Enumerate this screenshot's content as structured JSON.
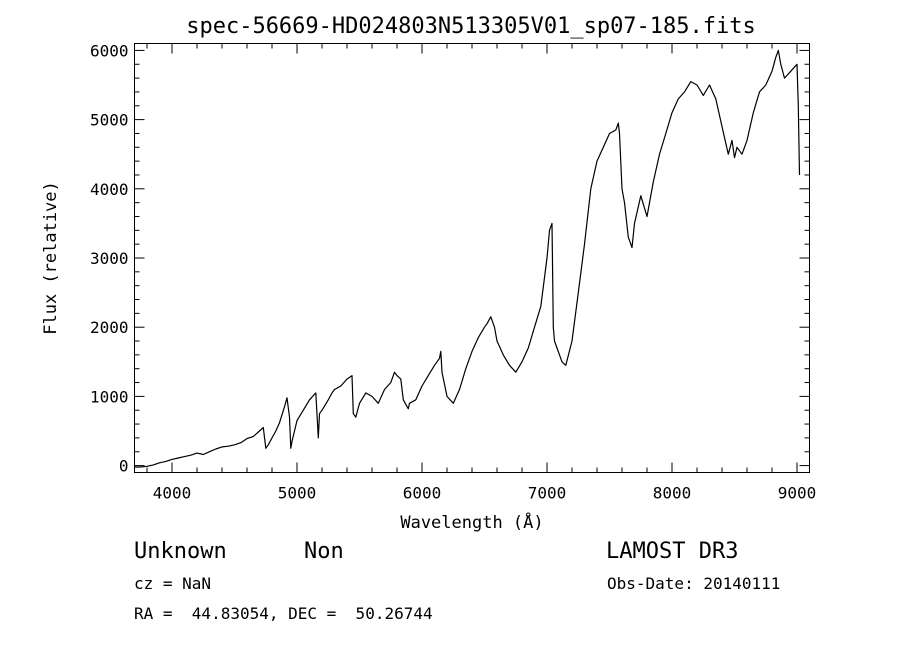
{
  "chart_data": {
    "type": "line",
    "title": "spec-56669-HD024803N513305V01_sp07-185.fits",
    "xlabel": "Wavelength (Å)",
    "ylabel": "Flux (relative)",
    "xlim": [
      3700,
      9100
    ],
    "ylim": [
      -100,
      6100
    ],
    "x_ticks": [
      "4000",
      "5000",
      "6000",
      "7000",
      "8000",
      "9000"
    ],
    "y_ticks": [
      "0",
      "1000",
      "2000",
      "3000",
      "4000",
      "5000",
      "6000"
    ],
    "grid": false,
    "series": [
      {
        "x": [
          3700,
          3750,
          3800,
          3850,
          3900,
          3950,
          4000,
          4050,
          4100,
          4150,
          4200,
          4250,
          4300,
          4350,
          4400,
          4450,
          4500,
          4550,
          4600,
          4650,
          4700,
          4730,
          4750,
          4770,
          4800,
          4830,
          4860,
          4900,
          4920,
          4940,
          4950,
          4960,
          4980,
          5000,
          5050,
          5100,
          5150,
          5170,
          5180,
          5200,
          5250,
          5280,
          5300,
          5350,
          5400,
          5440,
          5450,
          5470,
          5500,
          5550,
          5600,
          5650,
          5700,
          5750,
          5780,
          5800,
          5830,
          5850,
          5890,
          5900,
          5950,
          6000,
          6050,
          6100,
          6140,
          6150,
          6160,
          6200,
          6250,
          6300,
          6350,
          6400,
          6450,
          6500,
          6520,
          6550,
          6580,
          6600,
          6650,
          6700,
          6750,
          6800,
          6850,
          6900,
          6950,
          7000,
          7020,
          7040,
          7050,
          7060,
          7100,
          7120,
          7150,
          7200,
          7250,
          7300,
          7350,
          7400,
          7450,
          7500,
          7550,
          7570,
          7580,
          7600,
          7620,
          7650,
          7680,
          7700,
          7750,
          7800,
          7850,
          7900,
          7950,
          8000,
          8050,
          8100,
          8150,
          8200,
          8250,
          8300,
          8350,
          8400,
          8450,
          8480,
          8500,
          8520,
          8540,
          8560,
          8600,
          8650,
          8700,
          8750,
          8800,
          8830,
          8850,
          8870,
          8900,
          8950,
          9000,
          9010,
          9020
        ],
        "y": [
          -20,
          -20,
          -10,
          10,
          40,
          60,
          90,
          110,
          130,
          150,
          180,
          160,
          200,
          240,
          270,
          280,
          300,
          330,
          390,
          420,
          500,
          550,
          250,
          300,
          400,
          500,
          620,
          850,
          980,
          700,
          250,
          350,
          500,
          650,
          800,
          950,
          1050,
          400,
          750,
          800,
          950,
          1050,
          1100,
          1150,
          1250,
          1300,
          750,
          700,
          900,
          1050,
          1000,
          900,
          1100,
          1200,
          1350,
          1300,
          1250,
          950,
          820,
          900,
          950,
          1150,
          1300,
          1450,
          1550,
          1650,
          1350,
          1000,
          900,
          1100,
          1400,
          1650,
          1850,
          2000,
          2050,
          2150,
          2000,
          1800,
          1600,
          1450,
          1350,
          1500,
          1700,
          2000,
          2300,
          3000,
          3400,
          3500,
          2000,
          1800,
          1600,
          1500,
          1450,
          1800,
          2500,
          3200,
          4000,
          4400,
          4600,
          4800,
          4850,
          4950,
          4800,
          4000,
          3800,
          3300,
          3150,
          3500,
          3900,
          3600,
          4100,
          4500,
          4800,
          5100,
          5300,
          5400,
          5550,
          5500,
          5350,
          5500,
          5300,
          4900,
          4500,
          4700,
          4450,
          4600,
          4550,
          4500,
          4700,
          5100,
          5400,
          5500,
          5700,
          5900,
          6000,
          5800,
          5600,
          5700,
          5800,
          5200,
          4200
        ]
      }
    ]
  },
  "info": {
    "object_class": "Unknown",
    "subclass": "Non",
    "survey": "LAMOST DR3",
    "cz": "cz = NaN",
    "obs_date": "Obs-Date: 20140111",
    "radec": "RA =  44.83054, DEC =  50.26744"
  }
}
